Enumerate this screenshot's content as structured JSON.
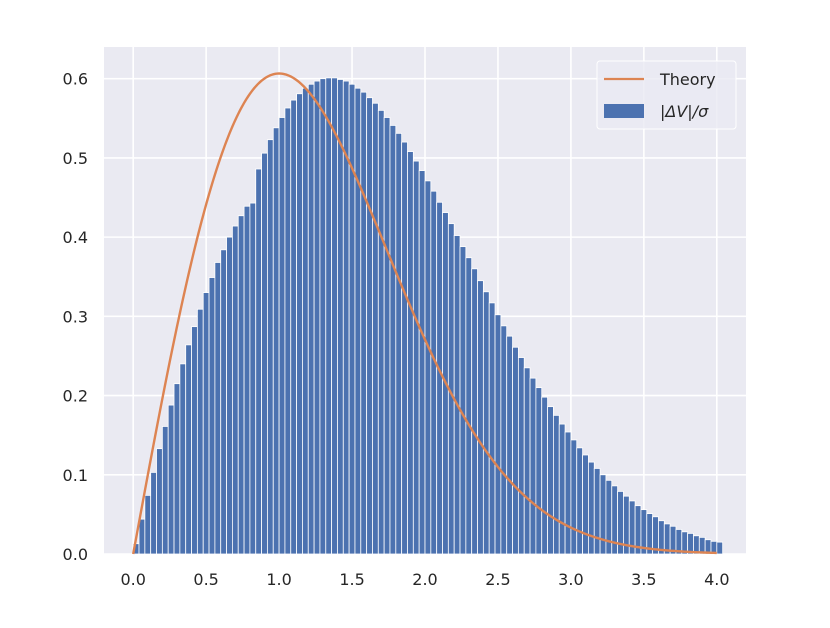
{
  "chart_data": {
    "type": "bar",
    "description_series": "histogram with theory curve overlay",
    "xlim": [
      -0.2,
      4.2
    ],
    "ylim": [
      0.0,
      0.64
    ],
    "xticks": [
      "0.0",
      "0.5",
      "1.0",
      "1.5",
      "2.0",
      "2.5",
      "3.0",
      "3.5",
      "4.0"
    ],
    "xtick_values": [
      0.0,
      0.5,
      1.0,
      1.5,
      2.0,
      2.5,
      3.0,
      3.5,
      4.0
    ],
    "yticks": [
      "0.0",
      "0.1",
      "0.2",
      "0.3",
      "0.4",
      "0.5",
      "0.6"
    ],
    "ytick_values": [
      0.0,
      0.1,
      0.2,
      0.3,
      0.4,
      0.5,
      0.6
    ],
    "grid": true,
    "legend_position": "top-right",
    "histogram": {
      "name": "|ΔV|/σ",
      "color": "#4c72b0",
      "bin_width": 0.04,
      "bin_start": 0.0,
      "values": [
        0.013,
        0.044,
        0.074,
        0.103,
        0.133,
        0.161,
        0.188,
        0.215,
        0.24,
        0.264,
        0.287,
        0.309,
        0.33,
        0.349,
        0.368,
        0.384,
        0.4,
        0.414,
        0.427,
        0.439,
        0.443,
        0.486,
        0.506,
        0.523,
        0.538,
        0.551,
        0.563,
        0.573,
        0.581,
        0.588,
        0.593,
        0.597,
        0.6,
        0.601,
        0.601,
        0.599,
        0.597,
        0.593,
        0.588,
        0.583,
        0.576,
        0.569,
        0.56,
        0.551,
        0.541,
        0.531,
        0.52,
        0.508,
        0.496,
        0.484,
        0.471,
        0.458,
        0.444,
        0.431,
        0.417,
        0.402,
        0.388,
        0.374,
        0.36,
        0.345,
        0.331,
        0.317,
        0.302,
        0.288,
        0.275,
        0.261,
        0.248,
        0.235,
        0.222,
        0.21,
        0.198,
        0.186,
        0.175,
        0.164,
        0.154,
        0.144,
        0.134,
        0.125,
        0.116,
        0.108,
        0.1,
        0.093,
        0.086,
        0.079,
        0.073,
        0.067,
        0.061,
        0.056,
        0.051,
        0.047,
        0.042,
        0.038,
        0.035,
        0.031,
        0.028,
        0.026,
        0.023,
        0.021,
        0.018,
        0.016,
        0.015
      ]
    },
    "theory": {
      "name": "Theory",
      "color": "#dd8452",
      "function": "x*exp(-x^2/2)",
      "x_range": [
        0.0,
        4.0
      ]
    }
  }
}
